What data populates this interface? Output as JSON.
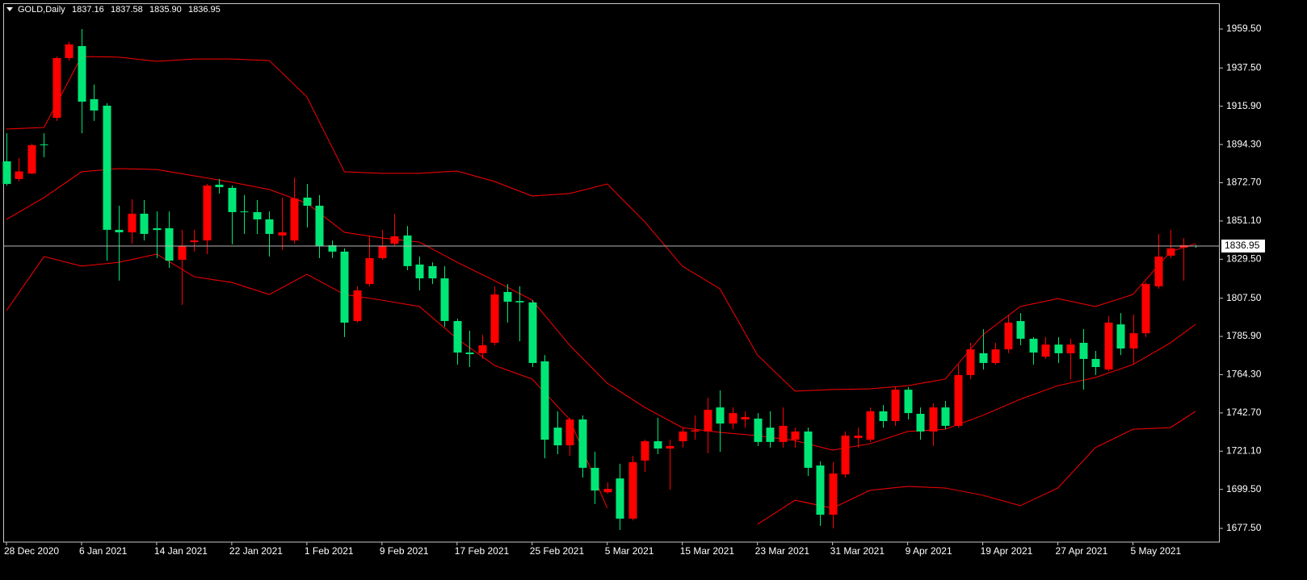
{
  "chart_data": {
    "type": "candlestick",
    "title": "GOLD,Daily",
    "quote": [
      "1837.16",
      "1837.58",
      "1835.90",
      "1836.95"
    ],
    "categories": [
      "28 Dec 2020",
      null,
      null,
      null,
      null,
      null,
      "6 Jan 2021",
      null,
      null,
      null,
      null,
      null,
      "14 Jan 2021",
      null,
      null,
      null,
      null,
      null,
      "22 Jan 2021",
      null,
      null,
      null,
      null,
      null,
      "1 Feb 2021",
      null,
      null,
      null,
      null,
      null,
      "9 Feb 2021",
      null,
      null,
      null,
      null,
      null,
      "17 Feb 2021",
      null,
      null,
      null,
      null,
      null,
      "25 Feb 2021",
      null,
      null,
      null,
      null,
      null,
      "5 Mar 2021",
      null,
      null,
      null,
      null,
      null,
      "15 Mar 2021",
      null,
      null,
      null,
      null,
      null,
      "23 Mar 2021",
      null,
      null,
      null,
      null,
      null,
      "31 Mar 2021",
      null,
      null,
      null,
      null,
      null,
      "9 Apr 2021",
      null,
      null,
      null,
      null,
      null,
      "19 Apr 2021",
      null,
      null,
      null,
      null,
      null,
      "27 Apr 2021",
      null,
      null,
      null,
      null,
      null,
      "5 May 2021",
      null,
      null,
      null,
      null,
      null
    ],
    "open": [
      1884.8,
      1874.8,
      1877.9,
      1894.3,
      1909.4,
      1943.1,
      1949.9,
      1919.9,
      1916.2,
      1846.1,
      1844.7,
      1855.2,
      1847.0,
      1847.0,
      1829.2,
      1839.2,
      1840.1,
      1871.6,
      1869.8,
      1856.5,
      1856.1,
      1852.0,
      1842.9,
      1840.1,
      1864.3,
      1859.7,
      1837.4,
      1833.8,
      1794.6,
      1815.5,
      1830.1,
      1838.3,
      1842.9,
      1826.5,
      1825.6,
      1818.7,
      1794.6,
      1776.8,
      1776.4,
      1782.3,
      1811.0,
      1805.9,
      1805.1,
      1771.8,
      1734.4,
      1724.4,
      1739.0,
      1711.7,
      1697.9,
      1705.7,
      1683.0,
      1715.8,
      1726.7,
      1722.6,
      1726.7,
      1732.2,
      1732.2,
      1745.8,
      1736.7,
      1739.0,
      1739.5,
      1734.4,
      1726.3,
      1727.6,
      1732.2,
      1713.0,
      1685.2,
      1708.0,
      1728.5,
      1727.6,
      1743.6,
      1738.1,
      1755.8,
      1742.2,
      1732.2,
      1745.8,
      1735.4,
      1764.1,
      1776.4,
      1770.9,
      1778.6,
      1794.6,
      1784.6,
      1774.5,
      1781.3,
      1776.4,
      1782.3,
      1773.2,
      1767.2,
      1792.7,
      1779.1,
      1787.7,
      1814.2,
      1831.5,
      1836.0,
      1837.16
    ],
    "high": [
      1900.7,
      1886.6,
      1894.8,
      1900.7,
      1944.0,
      1952.2,
      1959.5,
      1928.1,
      1917.6,
      1859.7,
      1863.4,
      1862.9,
      1856.5,
      1856.5,
      1846.1,
      1846.1,
      1872.0,
      1874.8,
      1871.1,
      1865.7,
      1862.9,
      1856.5,
      1864.3,
      1875.7,
      1872.0,
      1865.7,
      1840.1,
      1835.6,
      1814.2,
      1842.9,
      1846.1,
      1855.2,
      1848.3,
      1831.0,
      1827.8,
      1825.6,
      1795.9,
      1789.1,
      1786.8,
      1814.2,
      1815.5,
      1814.2,
      1806.4,
      1775.4,
      1743.6,
      1739.9,
      1741.3,
      1720.8,
      1703.5,
      1714.0,
      1718.5,
      1727.6,
      1739.9,
      1727.6,
      1734.4,
      1741.3,
      1751.3,
      1755.4,
      1745.8,
      1743.6,
      1742.6,
      1743.6,
      1745.8,
      1734.4,
      1734.4,
      1715.3,
      1714.9,
      1732.2,
      1734.4,
      1745.8,
      1747.2,
      1757.2,
      1757.2,
      1745.8,
      1748.1,
      1749.5,
      1770.0,
      1782.3,
      1790.0,
      1782.3,
      1798.2,
      1799.1,
      1785.5,
      1785.5,
      1785.5,
      1784.6,
      1790.0,
      1777.7,
      1797.3,
      1799.1,
      1798.2,
      1816.4,
      1843.8,
      1846.1,
      1841.5,
      1837.58
    ],
    "low": [
      1871.1,
      1873.4,
      1877.5,
      1887.1,
      1907.6,
      1941.7,
      1900.7,
      1907.6,
      1828.7,
      1817.4,
      1838.3,
      1840.1,
      1830.1,
      1824.6,
      1803.7,
      1833.8,
      1832.4,
      1866.6,
      1837.9,
      1843.8,
      1843.8,
      1831.0,
      1834.7,
      1838.3,
      1847.4,
      1830.1,
      1830.1,
      1785.5,
      1793.7,
      1814.2,
      1829.2,
      1836.9,
      1823.3,
      1811.9,
      1815.5,
      1791.4,
      1770.0,
      1768.6,
      1773.2,
      1780.9,
      1793.7,
      1783.2,
      1768.6,
      1717.1,
      1719.4,
      1718.5,
      1706.2,
      1691.2,
      1697.1,
      1676.6,
      1682.0,
      1709.4,
      1719.4,
      1699.4,
      1723.1,
      1727.6,
      1719.9,
      1720.8,
      1733.5,
      1734.4,
      1724.0,
      1723.1,
      1723.1,
      1723.1,
      1707.1,
      1678.9,
      1677.5,
      1706.2,
      1723.1,
      1726.3,
      1734.4,
      1735.4,
      1739.0,
      1727.6,
      1724.0,
      1733.5,
      1734.4,
      1761.8,
      1767.2,
      1770.0,
      1776.4,
      1780.9,
      1770.0,
      1773.2,
      1770.9,
      1761.8,
      1755.8,
      1764.1,
      1766.3,
      1775.4,
      1770.0,
      1785.5,
      1812.8,
      1830.1,
      1817.4,
      1835.9
    ],
    "close": [
      1872.0,
      1879.1,
      1893.9,
      1893.9,
      1943.1,
      1950.8,
      1918.5,
      1913.5,
      1846.1,
      1844.7,
      1855.2,
      1843.8,
      1846.0,
      1828.7,
      1836.9,
      1840.1,
      1871.1,
      1870.2,
      1856.1,
      1856.1,
      1852.0,
      1843.8,
      1844.7,
      1863.8,
      1859.7,
      1836.9,
      1833.8,
      1793.7,
      1811.9,
      1830.1,
      1836.9,
      1842.4,
      1825.6,
      1818.7,
      1818.7,
      1794.6,
      1776.8,
      1775.9,
      1780.9,
      1809.6,
      1805.5,
      1805.1,
      1770.9,
      1727.6,
      1724.4,
      1739.0,
      1711.7,
      1698.9,
      1699.8,
      1683.0,
      1714.9,
      1726.7,
      1722.6,
      1724.0,
      1732.2,
      1732.9,
      1744.5,
      1736.7,
      1742.6,
      1740.4,
      1726.3,
      1726.3,
      1735.4,
      1732.2,
      1711.7,
      1685.2,
      1708.5,
      1729.9,
      1729.9,
      1743.6,
      1738.1,
      1755.8,
      1742.6,
      1732.2,
      1745.8,
      1735.4,
      1764.1,
      1778.6,
      1770.9,
      1778.6,
      1793.7,
      1784.6,
      1776.8,
      1781.3,
      1776.4,
      1781.3,
      1773.2,
      1768.6,
      1793.7,
      1779.1,
      1787.7,
      1815.5,
      1831.0,
      1835.6,
      1837.4,
      1836.95
    ],
    "up_color": "#ff0000",
    "down_color": "#00e676",
    "series": [
      {
        "color": "#ff0000",
        "x": [
          0,
          3,
          6,
          9,
          12,
          15,
          18,
          21,
          24,
          27,
          30,
          33,
          36,
          39,
          42,
          45,
          48,
          51,
          54,
          57,
          60,
          63,
          66,
          69,
          72,
          75,
          78,
          81,
          84,
          87,
          90,
          93,
          95
        ],
        "values": [
          1903.0,
          1903.9,
          1944.0,
          1943.6,
          1941.3,
          1942.6,
          1942.6,
          1941.7,
          1921.2,
          1878.9,
          1878.0,
          1878.0,
          1879.3,
          1873.4,
          1865.2,
          1866.6,
          1872.0,
          1850.6,
          1825.6,
          1812.8,
          1775.4,
          1755.0,
          1755.9,
          1756.3,
          1758.1,
          1761.8,
          1786.8,
          1802.8,
          1807.3,
          1802.8,
          1809.6,
          1833.8,
          1838.3
        ]
      },
      {
        "color": "#ff0000",
        "x": [
          0,
          3,
          6,
          9,
          12,
          15,
          18,
          21,
          24,
          27,
          30,
          33,
          36,
          39,
          42,
          45,
          48,
          51,
          54,
          57,
          60,
          63,
          66,
          69,
          72,
          75,
          78,
          81,
          84,
          87,
          90,
          93,
          95
        ],
        "values": [
          1852.0,
          1864.3,
          1878.9,
          1880.7,
          1880.2,
          1876.6,
          1873.0,
          1868.9,
          1861.1,
          1844.7,
          1841.5,
          1839.2,
          1827.8,
          1817.4,
          1806.4,
          1780.9,
          1759.5,
          1745.8,
          1734.4,
          1731.7,
          1729.9,
          1727.1,
          1721.7,
          1725.3,
          1732.2,
          1733.5,
          1741.3,
          1750.4,
          1758.1,
          1762.7,
          1770.0,
          1782.3,
          1792.7
        ]
      },
      {
        "color": "#ff0000",
        "x": [
          0,
          3,
          6,
          9,
          12,
          15,
          18,
          21,
          24,
          27,
          30,
          33,
          36,
          39,
          42,
          45,
          48,
          51,
          54,
          57,
          60,
          63,
          66,
          69,
          72,
          75,
          78,
          81,
          84,
          87,
          90,
          93,
          95
        ],
        "values": [
          1800.5,
          1831.0,
          1825.6,
          1827.8,
          1832.4,
          1819.6,
          1816.4,
          1809.6,
          1821.0,
          1809.6,
          1806.4,
          1802.8,
          1784.6,
          1769.5,
          1761.8,
          1739.0,
          1688.9,
          null,
          null,
          null,
          1679.8,
          1693.4,
          1688.9,
          1699.0,
          1701.2,
          1700.3,
          1696.2,
          1690.3,
          1700.3,
          1723.1,
          1733.5,
          1734.4,
          1743.6
        ]
      }
    ],
    "ylim": [
      1669.75,
      1974.08
    ],
    "yticks": [
      {
        "value": 1959.5,
        "label": "1959.50"
      },
      {
        "value": 1937.5,
        "label": "1937.50"
      },
      {
        "value": 1915.9,
        "label": "1915.90"
      },
      {
        "value": 1894.3,
        "label": "1894.30"
      },
      {
        "value": 1872.7,
        "label": "1872.70"
      },
      {
        "value": 1851.1,
        "label": "1851.10"
      },
      {
        "value": 1829.5,
        "label": "1829.50"
      },
      {
        "value": 1807.5,
        "label": "1807.50"
      },
      {
        "value": 1785.9,
        "label": "1785.90"
      },
      {
        "value": 1764.3,
        "label": "1764.30"
      },
      {
        "value": 1742.7,
        "label": "1742.70"
      },
      {
        "value": 1721.1,
        "label": "1721.10"
      },
      {
        "value": 1699.5,
        "label": "1699.50"
      },
      {
        "value": 1677.5,
        "label": "1677.50"
      }
    ],
    "grid": false
  }
}
